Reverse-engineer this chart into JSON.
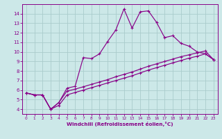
{
  "xlabel": "Windchill (Refroidissement éolien,°C)",
  "bg_color": "#cce8e8",
  "line_color": "#880088",
  "grid_color": "#aacccc",
  "xlim": [
    -0.5,
    23.5
  ],
  "ylim": [
    3.5,
    15.0
  ],
  "xticks": [
    0,
    1,
    2,
    3,
    4,
    5,
    6,
    7,
    8,
    9,
    10,
    11,
    12,
    13,
    14,
    15,
    16,
    17,
    18,
    19,
    20,
    21,
    22,
    23
  ],
  "yticks": [
    4,
    5,
    6,
    7,
    8,
    9,
    10,
    11,
    12,
    13,
    14
  ],
  "line1_x": [
    0,
    1,
    2,
    3,
    4,
    5,
    6,
    7,
    8,
    9,
    10,
    11,
    12,
    13,
    14,
    15,
    16,
    17,
    18,
    19,
    20,
    21,
    22,
    23
  ],
  "line1_y": [
    5.7,
    5.5,
    5.5,
    4.0,
    4.7,
    6.2,
    6.4,
    9.4,
    9.3,
    9.8,
    11.1,
    12.3,
    14.5,
    12.5,
    14.2,
    14.3,
    13.1,
    11.5,
    11.7,
    10.9,
    10.6,
    10.0,
    9.8,
    9.2
  ],
  "line2_x": [
    0,
    1,
    2,
    3,
    4,
    5,
    6,
    7,
    8,
    9,
    10,
    11,
    12,
    13,
    14,
    15,
    16,
    17,
    18,
    19,
    20,
    21,
    22,
    23
  ],
  "line2_y": [
    5.7,
    5.5,
    5.5,
    4.0,
    4.7,
    5.9,
    6.1,
    6.35,
    6.6,
    6.85,
    7.1,
    7.4,
    7.65,
    7.9,
    8.2,
    8.5,
    8.75,
    9.0,
    9.25,
    9.5,
    9.7,
    9.9,
    10.1,
    9.2
  ],
  "line3_x": [
    0,
    1,
    2,
    3,
    4,
    5,
    6,
    7,
    8,
    9,
    10,
    11,
    12,
    13,
    14,
    15,
    16,
    17,
    18,
    19,
    20,
    21,
    22,
    23
  ],
  "line3_y": [
    5.7,
    5.5,
    5.5,
    4.0,
    4.4,
    5.5,
    5.75,
    6.0,
    6.25,
    6.5,
    6.75,
    7.0,
    7.25,
    7.5,
    7.8,
    8.1,
    8.35,
    8.6,
    8.85,
    9.1,
    9.35,
    9.55,
    9.8,
    9.2
  ]
}
